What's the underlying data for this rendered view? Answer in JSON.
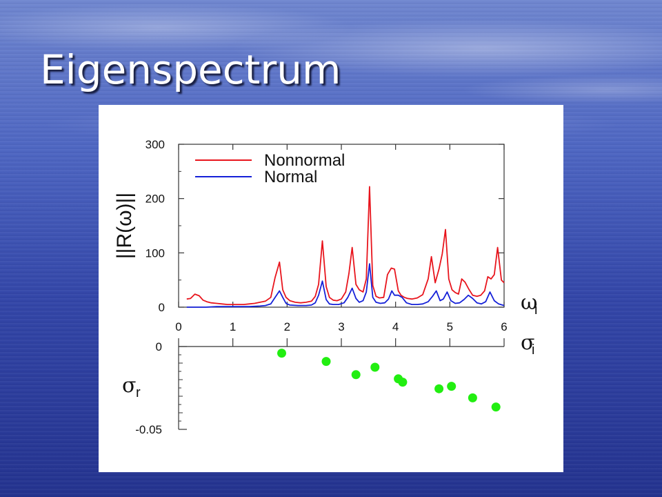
{
  "slide": {
    "title": "Eigenspectrum"
  },
  "colors": {
    "nonnormal": "#e8141c",
    "normal": "#1420d8",
    "eigen": "#22ee11"
  },
  "chart_data": [
    {
      "type": "line",
      "xlim": [
        0,
        6
      ],
      "ylim": [
        0,
        300
      ],
      "x_ticks": [
        0,
        1,
        2,
        3,
        4,
        5,
        6
      ],
      "y_ticks": [
        0,
        100,
        200,
        300
      ],
      "ylabel": "||R(ω)||",
      "xlabel": "ω",
      "xlabel_sub": "i",
      "legend_position": "top-left",
      "series": [
        {
          "name": "Nonnormal",
          "color": "#e8141c",
          "x": [
            0.15,
            0.22,
            0.3,
            0.38,
            0.45,
            0.52,
            0.6,
            0.7,
            0.8,
            0.9,
            1.0,
            1.1,
            1.2,
            1.3,
            1.4,
            1.5,
            1.6,
            1.7,
            1.78,
            1.86,
            1.92,
            1.98,
            2.05,
            2.15,
            2.25,
            2.35,
            2.45,
            2.52,
            2.58,
            2.65,
            2.72,
            2.78,
            2.85,
            2.92,
            3.0,
            3.08,
            3.14,
            3.2,
            3.27,
            3.33,
            3.4,
            3.46,
            3.52,
            3.58,
            3.64,
            3.7,
            3.78,
            3.85,
            3.92,
            3.98,
            4.05,
            4.1,
            4.16,
            4.22,
            4.3,
            4.4,
            4.5,
            4.6,
            4.66,
            4.73,
            4.8,
            4.86,
            4.92,
            4.98,
            5.04,
            5.1,
            5.16,
            5.22,
            5.28,
            5.35,
            5.42,
            5.5,
            5.57,
            5.64,
            5.7,
            5.76,
            5.82,
            5.88,
            5.95,
            6.0
          ],
          "values": [
            15,
            16,
            24,
            21,
            13,
            10,
            8,
            7,
            6,
            5,
            5,
            5,
            5,
            6,
            7,
            9,
            11,
            18,
            55,
            83,
            32,
            18,
            12,
            9,
            8,
            9,
            11,
            20,
            42,
            122,
            38,
            18,
            13,
            12,
            15,
            28,
            62,
            110,
            42,
            32,
            28,
            52,
            222,
            40,
            20,
            17,
            18,
            60,
            72,
            70,
            30,
            22,
            18,
            16,
            15,
            17,
            23,
            52,
            93,
            45,
            70,
            98,
            143,
            52,
            32,
            27,
            24,
            52,
            46,
            33,
            22,
            20,
            22,
            30,
            56,
            52,
            60,
            110,
            50,
            45
          ]
        },
        {
          "name": "Normal",
          "color": "#1420d8",
          "x": [
            0.15,
            0.3,
            0.5,
            0.7,
            0.9,
            1.1,
            1.3,
            1.5,
            1.6,
            1.7,
            1.78,
            1.86,
            1.92,
            1.98,
            2.05,
            2.2,
            2.35,
            2.45,
            2.52,
            2.58,
            2.65,
            2.72,
            2.78,
            2.85,
            2.95,
            3.05,
            3.12,
            3.2,
            3.27,
            3.33,
            3.4,
            3.46,
            3.52,
            3.58,
            3.64,
            3.72,
            3.8,
            3.87,
            3.93,
            3.98,
            4.05,
            4.12,
            4.2,
            4.3,
            4.4,
            4.5,
            4.6,
            4.68,
            4.75,
            4.82,
            4.88,
            4.95,
            5.02,
            5.1,
            5.18,
            5.26,
            5.34,
            5.42,
            5.5,
            5.58,
            5.66,
            5.74,
            5.82,
            5.9,
            6.0
          ],
          "values": [
            0,
            0,
            0,
            1,
            1,
            1,
            1,
            2,
            3,
            6,
            18,
            30,
            18,
            7,
            4,
            3,
            3,
            4,
            8,
            22,
            48,
            14,
            6,
            5,
            5,
            8,
            18,
            35,
            16,
            9,
            12,
            28,
            80,
            18,
            9,
            7,
            8,
            15,
            30,
            22,
            22,
            18,
            8,
            5,
            5,
            6,
            10,
            20,
            30,
            12,
            15,
            28,
            12,
            7,
            8,
            14,
            22,
            16,
            8,
            6,
            10,
            28,
            12,
            6,
            3
          ]
        }
      ]
    },
    {
      "type": "scatter",
      "xlim": [
        0,
        6
      ],
      "ylim": [
        -0.05,
        0
      ],
      "x_ticks": [
        0,
        1,
        2,
        3,
        4,
        5,
        6
      ],
      "y_ticks": [
        0,
        -0.05
      ],
      "xlabel": "σ",
      "xlabel_sub": "i",
      "ylabel": "σ",
      "ylabel_sub": "r",
      "series": [
        {
          "color": "#22ee11",
          "x": [
            1.9,
            2.72,
            3.27,
            3.62,
            4.05,
            4.13,
            4.8,
            5.03,
            5.42,
            5.85
          ],
          "values": [
            -0.004,
            -0.009,
            -0.017,
            -0.0125,
            -0.0195,
            -0.0215,
            -0.0255,
            -0.024,
            -0.031,
            -0.0365
          ]
        }
      ]
    }
  ]
}
